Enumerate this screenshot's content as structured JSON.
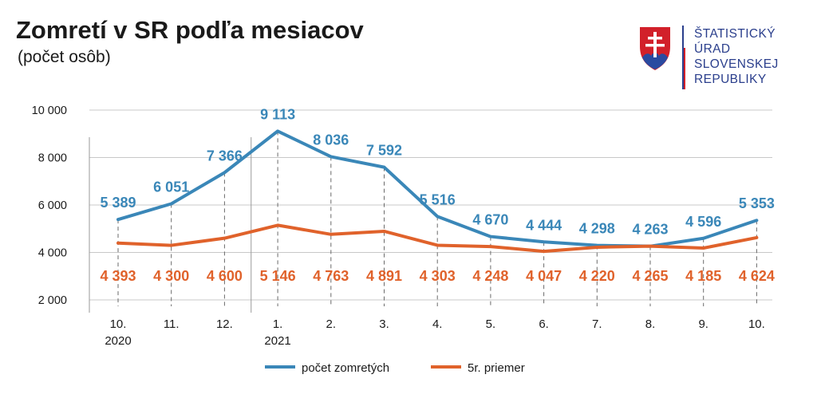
{
  "header": {
    "title": "Zomretí v SR podľa mesiacov",
    "subtitle": "(počet osôb)"
  },
  "logo": {
    "lines": [
      "ŠTATISTICKÝ",
      "ÚRAD",
      "SLOVENSKEJ",
      "REPUBLIKY"
    ],
    "emblem_icon": "slovak-coat-of-arms-icon",
    "text_color": "#2a3e8c"
  },
  "chart_data": {
    "type": "line",
    "categories": [
      "10.",
      "11.",
      "12.",
      "1.",
      "2.",
      "3.",
      "4.",
      "5.",
      "6.",
      "7.",
      "8.",
      "9.",
      "10."
    ],
    "year_labels": [
      {
        "index": 0,
        "text": "2020"
      },
      {
        "index": 3,
        "text": "2021"
      }
    ],
    "ylim": [
      2000,
      10000
    ],
    "yticks": [
      2000,
      4000,
      6000,
      8000,
      10000
    ],
    "ytick_labels": [
      "2 000",
      "4 000",
      "6 000",
      "8 000",
      "10 000"
    ],
    "grid": true,
    "legend_position": "bottom",
    "series": [
      {
        "name": "počet zomretých",
        "color": "#3a87b8",
        "values": [
          5389,
          6051,
          7366,
          9113,
          8036,
          7592,
          5516,
          4670,
          4444,
          4298,
          4263,
          4596,
          5353
        ],
        "labels": [
          "5 389",
          "6 051",
          "7 366",
          "9 113",
          "8 036",
          "7 592",
          "5 516",
          "4 670",
          "4 444",
          "4 298",
          "4 263",
          "4 596",
          "5 353"
        ]
      },
      {
        "name": "5r. priemer",
        "color": "#e0622b",
        "values": [
          4393,
          4300,
          4600,
          5146,
          4763,
          4891,
          4303,
          4248,
          4047,
          4220,
          4265,
          4185,
          4624
        ],
        "labels": [
          "4 393",
          "4 300",
          "4 600",
          "5 146",
          "4 763",
          "4 891",
          "4 303",
          "4 248",
          "4 047",
          "4 220",
          "4 265",
          "4 185",
          "4 624"
        ]
      }
    ]
  }
}
